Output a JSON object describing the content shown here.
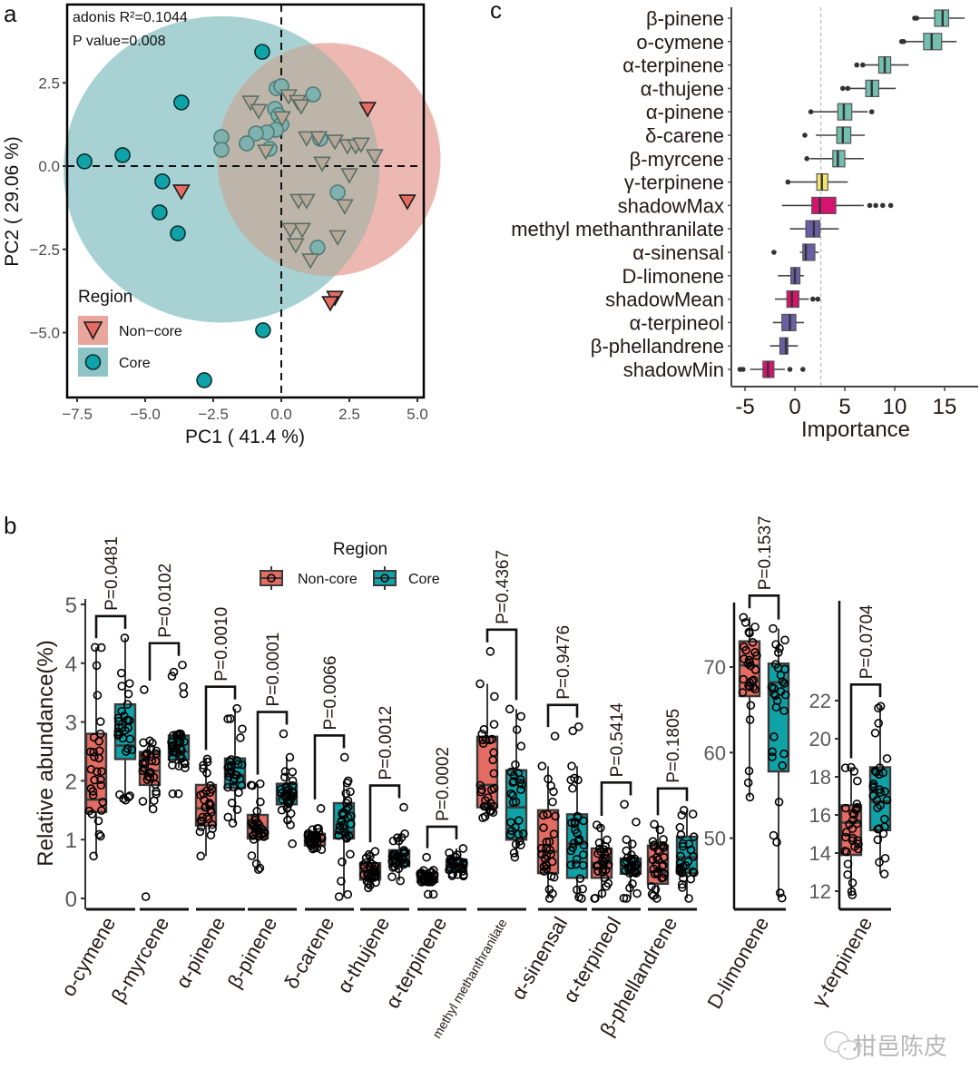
{
  "watermark": "柑邑陈皮",
  "colors": {
    "noncore": "#E46C62",
    "core": "#0FA3A8",
    "noncore_ellipse": "#E8A69D",
    "core_ellipse": "#8EC4C6",
    "shadow": "#D6136E",
    "confirmed": "#72BFB0",
    "tentative": "#F4E46C",
    "rejected": "#6A5FA6"
  },
  "chart_data": [
    {
      "panel": "a",
      "type": "scatter",
      "title": "",
      "xlabel": "PC1 ( 41.4 %)",
      "ylabel": "PC2 ( 29.06 %)",
      "xlim": [
        -7.9,
        5.2
      ],
      "ylim": [
        -6.9,
        4.8
      ],
      "xticks": [
        -7.5,
        -5.0,
        -2.5,
        0.0,
        2.5,
        5.0
      ],
      "xtick_labels": [
        "−7.5",
        "−5.0",
        "−2.5",
        "0.0",
        "2.5",
        "5.0"
      ],
      "yticks": [
        2.5,
        0.0,
        -2.5,
        -5.0
      ],
      "ytick_labels": [
        "2.5",
        "0.0",
        "−2.5",
        "−5.0"
      ],
      "grid": false,
      "reference_lines": {
        "x": 0,
        "y": 0,
        "style": "dashed"
      },
      "annotations": [
        "adonis R²=0.1044",
        "P value=0.008"
      ],
      "legend": {
        "title": "Region",
        "position": "bottom-left",
        "entries": [
          "Non−core",
          "Core"
        ]
      },
      "ellipses": [
        {
          "group": "Core",
          "cx": -2.2,
          "cy": -0.1,
          "rx": 5.8,
          "ry": 4.6
        },
        {
          "group": "Non-core",
          "cx": 1.75,
          "cy": 0.2,
          "rx": 4.1,
          "ry": 3.5
        }
      ],
      "series": [
        {
          "name": "Core",
          "marker": "circle",
          "points": [
            [
              -7.23,
              0.14
            ],
            [
              -5.83,
              0.33
            ],
            [
              -3.67,
              1.91
            ],
            [
              -2.2,
              0.87
            ],
            [
              -2.2,
              0.49
            ],
            [
              -4.37,
              -0.46
            ],
            [
              -4.47,
              -1.39
            ],
            [
              -3.8,
              -2.02
            ],
            [
              -0.7,
              3.43
            ],
            [
              -0.67,
              -4.93
            ],
            [
              -2.83,
              -6.43
            ],
            [
              -0.17,
              2.34
            ],
            [
              0.0,
              2.4
            ],
            [
              1.17,
              2.15
            ],
            [
              -0.23,
              1.72
            ],
            [
              -0.1,
              1.53
            ],
            [
              0.0,
              1.25
            ],
            [
              -0.2,
              1.09
            ],
            [
              -0.53,
              1.01
            ],
            [
              -0.93,
              0.98
            ],
            [
              -1.27,
              0.68
            ],
            [
              -0.43,
              0.52
            ],
            [
              1.43,
              0.82
            ],
            [
              2.07,
              -0.79
            ],
            [
              1.33,
              -2.45
            ]
          ]
        },
        {
          "name": "Non-core",
          "marker": "triangle-down",
          "points": [
            [
              -3.67,
              -0.76
            ],
            [
              -1.13,
              1.91
            ],
            [
              -0.83,
              1.66
            ],
            [
              0.27,
              2.1
            ],
            [
              0.6,
              1.93
            ],
            [
              0.73,
              1.8
            ],
            [
              0.03,
              1.44
            ],
            [
              -0.57,
              0.44
            ],
            [
              0.93,
              0.84
            ],
            [
              1.37,
              0.84
            ],
            [
              1.97,
              0.74
            ],
            [
              2.43,
              0.6
            ],
            [
              2.73,
              0.6
            ],
            [
              2.93,
              0.65
            ],
            [
              3.17,
              1.72
            ],
            [
              3.43,
              0.3
            ],
            [
              1.5,
              0.08
            ],
            [
              4.63,
              -1.06
            ],
            [
              0.63,
              -1.04
            ],
            [
              0.93,
              -1.04
            ],
            [
              0.33,
              -1.91
            ],
            [
              0.77,
              -1.91
            ],
            [
              0.53,
              -2.37
            ],
            [
              1.07,
              -2.83
            ],
            [
              2.07,
              -2.13
            ],
            [
              2.33,
              -1.2
            ],
            [
              2.5,
              -0.27
            ],
            [
              1.97,
              -3.95
            ],
            [
              1.8,
              -4.11
            ]
          ]
        }
      ]
    },
    {
      "panel": "b",
      "type": "box",
      "ylabel": "Relative abundance(%)",
      "legend": {
        "title": "Region",
        "position": "top",
        "entries": [
          "Non-core",
          "Core"
        ]
      },
      "groups": [
        "Non-core",
        "Core"
      ],
      "facets": [
        {
          "ylim": [
            -0.15,
            5.3
          ],
          "yticks": [
            0,
            1,
            2,
            3,
            4,
            5
          ],
          "categories": [
            {
              "name": "o-cymene",
              "p": "P=0.0481",
              "noncore": {
                "min": 0.72,
                "q1": 1.47,
                "median": 1.68,
                "q3": 2.8,
                "max": 4.27
              },
              "core": {
                "min": 1.67,
                "q1": 2.37,
                "median": 2.6,
                "q3": 3.3,
                "max": 4.43
              }
            },
            {
              "name": "β-myrcene",
              "p": "P=0.0102",
              "noncore": {
                "min": 1.52,
                "q1": 1.93,
                "median": 2.17,
                "q3": 2.49,
                "max": 2.68,
                "outliers": [
                  3.55,
                  0.03
                ]
              },
              "core": {
                "min": 2.22,
                "q1": 2.36,
                "median": 2.5,
                "q3": 2.77,
                "max": 2.8,
                "outliers": [
                  3.97,
                  3.85,
                  3.78,
                  3.6,
                  3.48,
                  1.78,
                  1.78
                ]
              }
            },
            {
              "name": "α-pinene",
              "p": "P=0.0010",
              "noncore": {
                "min": 0.72,
                "q1": 1.24,
                "median": 1.53,
                "q3": 1.93,
                "max": 2.37
              },
              "core": {
                "min": 1.28,
                "q1": 1.88,
                "median": 2.1,
                "q3": 2.38,
                "max": 3.23
              }
            },
            {
              "name": "β-pinene",
              "p": "P=0.0001",
              "noncore": {
                "min": 0.49,
                "q1": 1.02,
                "median": 1.2,
                "q3": 1.42,
                "max": 1.95
              },
              "core": {
                "min": 1.25,
                "q1": 1.6,
                "median": 1.75,
                "q3": 1.95,
                "max": 2.4,
                "outliers": [
                  2.8,
                  0.93
                ]
              }
            },
            {
              "name": "δ-carene",
              "p": "P=0.0066",
              "noncore": {
                "min": 0.83,
                "q1": 0.9,
                "median": 1.0,
                "q3": 1.1,
                "max": 1.19,
                "outliers": [
                  1.53
                ]
              },
              "core": {
                "min": 0.03,
                "q1": 1.02,
                "median": 1.13,
                "q3": 1.62,
                "max": 2.0,
                "outliers": [
                  2.4
                ]
              }
            },
            {
              "name": "α-thujene",
              "p": "P=0.0012",
              "noncore": {
                "min": 0.18,
                "q1": 0.32,
                "median": 0.45,
                "q3": 0.6,
                "max": 0.8
              },
              "core": {
                "min": 0.3,
                "q1": 0.55,
                "median": 0.67,
                "q3": 0.82,
                "max": 1.1,
                "outliers": [
                  1.55
                ]
              }
            },
            {
              "name": "α-terpinene",
              "p": "P=0.0002",
              "noncore": {
                "min": 0.28,
                "q1": 0.28,
                "median": 0.37,
                "q3": 0.43,
                "max": 0.48,
                "outliers": [
                  0.7,
                  0.07,
                  0.07
                ]
              },
              "core": {
                "min": 0.38,
                "q1": 0.45,
                "median": 0.52,
                "q3": 0.66,
                "max": 0.85
              }
            },
            {
              "name": "methyl methanthranilate",
              "p": "P=0.4367",
              "noncore": {
                "min": 1.37,
                "q1": 1.55,
                "median": 1.93,
                "q3": 2.75,
                "max": 3.65,
                "outliers": [
                  4.2
                ]
              },
              "core": {
                "min": 0.7,
                "q1": 1.0,
                "median": 1.55,
                "q3": 2.18,
                "max": 3.22
              }
            },
            {
              "name": "α-sinensal",
              "p": "P=0.9476",
              "noncore": {
                "min": 0.0,
                "q1": 0.43,
                "median": 0.8,
                "q3": 1.5,
                "max": 2.25,
                "outliers": [
                  2.76
                ]
              },
              "core": {
                "min": 0.0,
                "q1": 0.35,
                "median": 0.93,
                "q3": 1.43,
                "max": 2.25,
                "outliers": [
                  2.92,
                  2.85
                ]
              }
            },
            {
              "name": "α-terpineol",
              "p": "P=0.5414",
              "noncore": {
                "min": 0.0,
                "q1": 0.35,
                "median": 0.6,
                "q3": 0.85,
                "max": 1.25
              },
              "core": {
                "min": 0.0,
                "q1": 0.42,
                "median": 0.55,
                "q3": 0.68,
                "max": 1.0,
                "outliers": [
                  1.3,
                  1.6
                ]
              }
            },
            {
              "name": "β-phellandrene",
              "p": "P=0.1805",
              "noncore": {
                "min": 0.0,
                "q1": 0.25,
                "median": 0.45,
                "q3": 0.9,
                "max": 1.26
              },
              "core": {
                "min": 0.0,
                "q1": 0.43,
                "median": 0.7,
                "q3": 1.05,
                "max": 1.5
              }
            }
          ]
        },
        {
          "ylim": [
            43,
            77
          ],
          "yticks": [
            50,
            60,
            70
          ],
          "categories": [
            {
              "name": "D-limonene",
              "p": "P=0.1537",
              "noncore": {
                "min": 54.8,
                "q1": 66.6,
                "median": 70.2,
                "q3": 73.0,
                "max": 75.8
              },
              "core": {
                "min": 43.0,
                "q1": 57.8,
                "median": 68.2,
                "q3": 70.4,
                "max": 74.5
              }
            }
          ]
        },
        {
          "ylim": [
            11.5,
            22.4
          ],
          "yticks": [
            12,
            14,
            16,
            18,
            20,
            22
          ],
          "categories": [
            {
              "name": "γ-terpinene",
              "p": "P=0.0704",
              "noncore": {
                "min": 11.8,
                "q1": 13.9,
                "median": 15.6,
                "q3": 16.5,
                "max": 18.5
              },
              "core": {
                "min": 12.9,
                "q1": 15.2,
                "median": 16.7,
                "q3": 18.5,
                "max": 21.7
              }
            }
          ]
        }
      ]
    },
    {
      "panel": "c",
      "type": "box",
      "orientation": "horizontal",
      "xlabel": "Importance",
      "xlim": [
        -6.3,
        18.2
      ],
      "xticks": [
        -5,
        0,
        5,
        10,
        15
      ],
      "reference_line": {
        "x": 2.6,
        "style": "dashed"
      },
      "categories": [
        {
          "name": "β-pinene",
          "status": "confirmed",
          "min": 12.3,
          "q1": 14.0,
          "median": 14.8,
          "q3": 15.4,
          "max": 17.0,
          "outliers": [
            12.0,
            12.2
          ]
        },
        {
          "name": "o-cymene",
          "status": "confirmed",
          "min": 11.0,
          "q1": 12.9,
          "median": 13.7,
          "q3": 14.7,
          "max": 16.2,
          "outliers": [
            10.7,
            10.9
          ]
        },
        {
          "name": "α-terpinene",
          "status": "confirmed",
          "min": 7.0,
          "q1": 8.4,
          "median": 9.0,
          "q3": 9.6,
          "max": 11.4,
          "outliers": [
            6.2,
            6.8
          ]
        },
        {
          "name": "α-thujene",
          "status": "confirmed",
          "min": 5.5,
          "q1": 7.1,
          "median": 7.7,
          "q3": 8.4,
          "max": 10.1,
          "outliers": [
            4.8,
            5.3
          ]
        },
        {
          "name": "α-pinene",
          "status": "confirmed",
          "min": 1.8,
          "q1": 4.3,
          "median": 4.9,
          "q3": 5.7,
          "max": 7.3,
          "outliers": [
            1.6,
            7.7
          ]
        },
        {
          "name": "δ-carene",
          "status": "confirmed",
          "min": 2.1,
          "q1": 4.2,
          "median": 4.8,
          "q3": 5.6,
          "max": 7.0,
          "outliers": [
            1.0
          ]
        },
        {
          "name": "β-myrcene",
          "status": "confirmed",
          "min": 1.5,
          "q1": 3.8,
          "median": 4.3,
          "q3": 5.0,
          "max": 6.9,
          "outliers": [
            1.2
          ]
        },
        {
          "name": "γ-terpinene",
          "status": "tentative",
          "min": -0.5,
          "q1": 2.2,
          "median": 2.7,
          "q3": 3.3,
          "max": 5.3,
          "outliers": [
            -0.7
          ]
        },
        {
          "name": "shadowMax",
          "status": "shadow",
          "min": -1.3,
          "q1": 1.7,
          "median": 2.5,
          "q3": 4.1,
          "max": 6.9,
          "outliers": [
            7.5,
            8.1,
            8.8,
            9.6
          ]
        },
        {
          "name": "methyl methanthranilate",
          "status": "rejected",
          "min": -0.5,
          "q1": 1.1,
          "median": 1.9,
          "q3": 2.5,
          "max": 4.4
        },
        {
          "name": "α-sinensal",
          "status": "rejected",
          "min": 0.5,
          "q1": 0.8,
          "median": 1.1,
          "q3": 2.0,
          "max": 2.4,
          "outliers": [
            -2.1
          ]
        },
        {
          "name": "D-limonene",
          "status": "rejected",
          "min": -1.7,
          "q1": -0.4,
          "median": 0.0,
          "q3": 0.5,
          "max": 0.9
        },
        {
          "name": "shadowMean",
          "status": "shadow",
          "min": -2.0,
          "q1": -0.8,
          "median": -0.3,
          "q3": 0.4,
          "max": 1.4,
          "outliers": [
            1.8,
            2.3
          ]
        },
        {
          "name": "α-terpineol",
          "status": "rejected",
          "min": -2.2,
          "q1": -1.3,
          "median": -0.5,
          "q3": 0.1,
          "max": 0.9
        },
        {
          "name": "β-phellandrene",
          "status": "rejected",
          "min": -2.5,
          "q1": -1.5,
          "median": -0.9,
          "q3": -0.7,
          "max": 0.3
        },
        {
          "name": "shadowMin",
          "status": "shadow",
          "min": -4.5,
          "q1": -3.2,
          "median": -2.7,
          "q3": -2.1,
          "max": -1.0,
          "outliers": [
            -5.5,
            -5.2,
            -0.5,
            0.8
          ]
        }
      ]
    }
  ],
  "labels": {
    "panel_a": "a",
    "panel_b": "b",
    "panel_c": "c"
  }
}
